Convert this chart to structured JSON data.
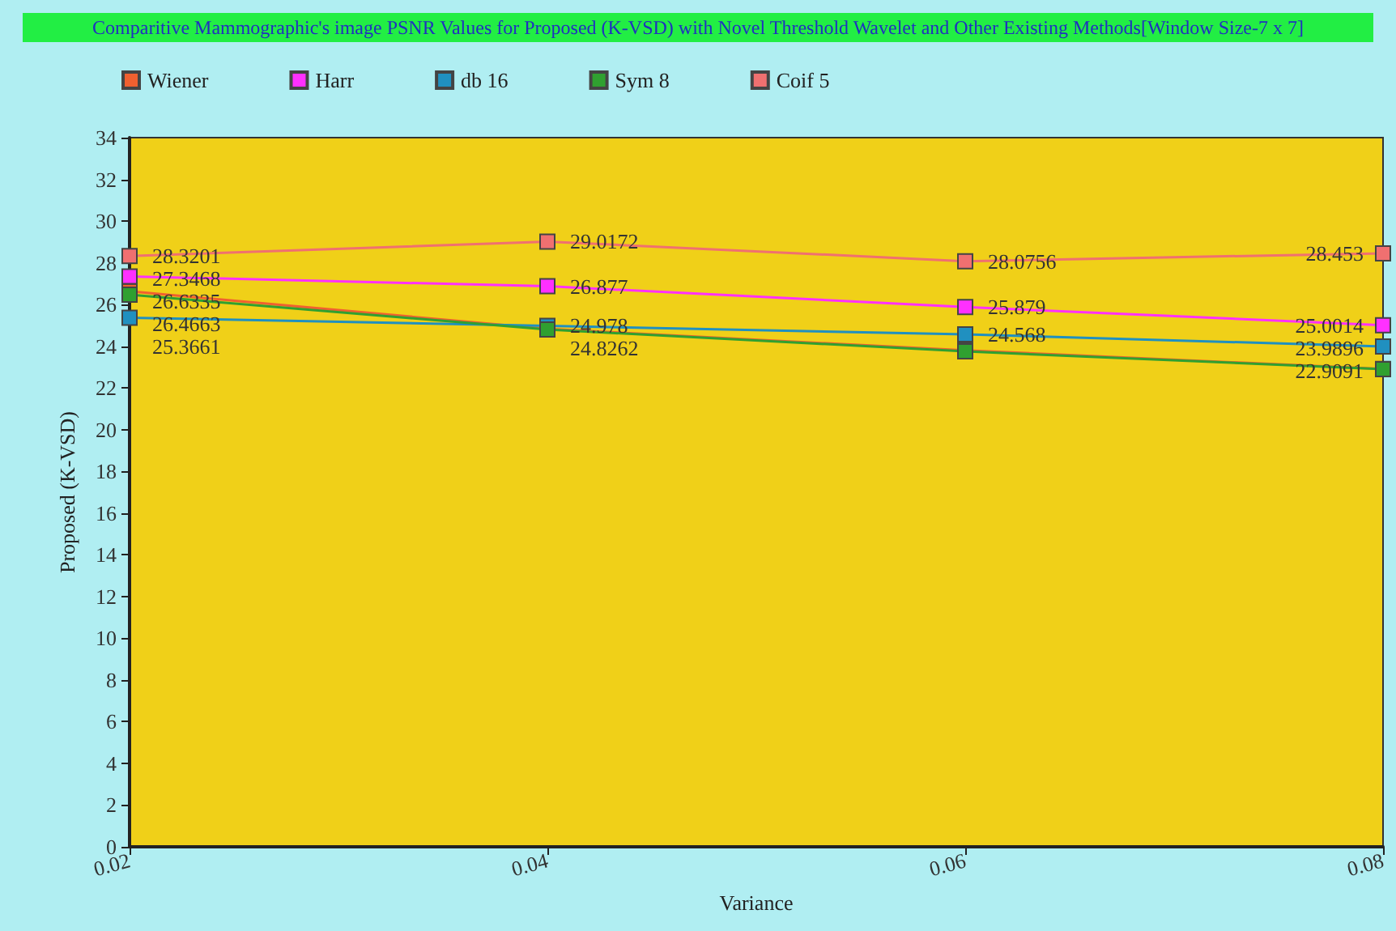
{
  "chart_data": {
    "type": "line",
    "title": "Comparitive Mammographic's image PSNR Values for Proposed (K-VSD) with Novel Threshold Wavelet and Other Existing Methods[Window Size-7 x 7]",
    "xlabel": "Variance",
    "ylabel": "Proposed (K-VSD)",
    "x": [
      0.02,
      0.04,
      0.06,
      0.08
    ],
    "xlim": [
      0.02,
      0.08
    ],
    "xticks": [
      0.02,
      0.04,
      0.06,
      0.08
    ],
    "ylim": [
      0,
      34
    ],
    "yticks": [
      0,
      2,
      4,
      6,
      8,
      10,
      12,
      14,
      16,
      18,
      20,
      22,
      24,
      26,
      28,
      30,
      32,
      34
    ],
    "grid": false,
    "legend": "top left",
    "marker": "square",
    "line_style": "solid",
    "series": [
      {
        "name": "Wiener",
        "color": "#f06030",
        "values": [
          26.6335,
          24.8262,
          23.8,
          22.9091
        ],
        "value_labels": [
          "26.6335",
          "24.8262",
          null,
          "22.9091"
        ]
      },
      {
        "name": "Harr",
        "color": "#ff30ff",
        "values": [
          27.3468,
          26.877,
          25.879,
          25.0014
        ],
        "value_labels": [
          "27.3468",
          "26.877",
          "25.879",
          "25.0014"
        ]
      },
      {
        "name": "db 16",
        "color": "#2090c0",
        "values": [
          25.3661,
          24.978,
          24.568,
          23.9896
        ],
        "value_labels": [
          "25.3661",
          "24.978",
          "24.568",
          "23.9896"
        ]
      },
      {
        "name": "Sym 8",
        "color": "#30a030",
        "values": [
          26.4663,
          24.8,
          23.75,
          22.9
        ],
        "value_labels": [
          "26.4663",
          null,
          null,
          null
        ]
      },
      {
        "name": "Coif 5",
        "color": "#f07070",
        "values": [
          28.3201,
          29.0172,
          28.0756,
          28.453
        ],
        "value_labels": [
          "28.3201",
          "29.0172",
          "28.0756",
          "28.453"
        ]
      }
    ]
  }
}
